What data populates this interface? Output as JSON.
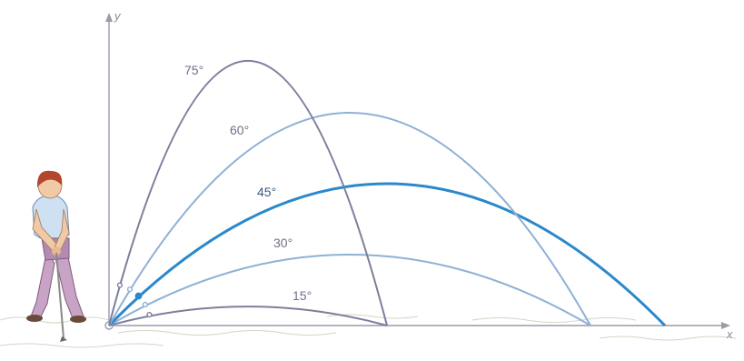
{
  "axes": {
    "x_label": "x",
    "y_label": "y"
  },
  "trajectories": [
    {
      "label": "15°",
      "angle": 15,
      "range_ratio": 0.5,
      "color": "#7b7f9c",
      "emphasized": false
    },
    {
      "label": "30°",
      "angle": 30,
      "range_ratio": 0.866,
      "color": "#8fb0d6",
      "emphasized": false
    },
    {
      "label": "45°",
      "angle": 45,
      "range_ratio": 1.0,
      "color": "#2a88cc",
      "emphasized": true
    },
    {
      "label": "60°",
      "angle": 60,
      "range_ratio": 0.866,
      "color": "#8fb0d6",
      "emphasized": false
    },
    {
      "label": "75°",
      "angle": 75,
      "range_ratio": 0.5,
      "color": "#7b7f9c",
      "emphasized": false
    }
  ],
  "figure": {
    "icon": "golfer-icon"
  }
}
